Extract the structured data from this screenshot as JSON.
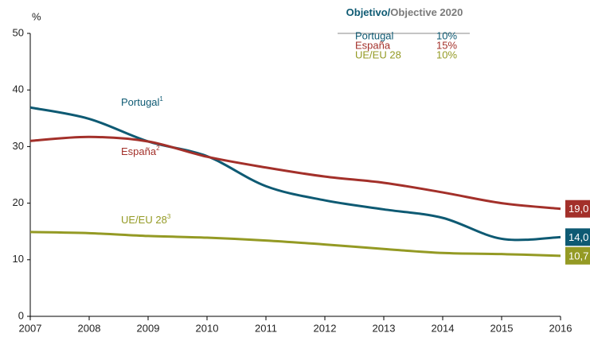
{
  "chart_data": {
    "type": "line",
    "y_label": "%",
    "x": [
      2007,
      2008,
      2009,
      2010,
      2011,
      2012,
      2013,
      2014,
      2015,
      2016
    ],
    "xlim": [
      2007,
      2016
    ],
    "xticks": [
      2007,
      2008,
      2009,
      2010,
      2011,
      2012,
      2013,
      2014,
      2015,
      2016
    ],
    "ylim": [
      0,
      50
    ],
    "yticks": [
      0,
      10,
      20,
      30,
      40,
      50
    ],
    "grid": false,
    "series": [
      {
        "name": "Portugal",
        "sup": "1",
        "color": "#0e5a73",
        "values": [
          36.9,
          34.9,
          30.9,
          28.3,
          23.0,
          20.5,
          18.9,
          17.4,
          13.7,
          14.0
        ],
        "end_label": "14,0"
      },
      {
        "name": "España",
        "sup": "2",
        "color": "#a3302a",
        "values": [
          31.0,
          31.7,
          30.9,
          28.2,
          26.3,
          24.7,
          23.6,
          21.9,
          20.0,
          19.0
        ],
        "end_label": "19,0"
      },
      {
        "name": "UE/EU 28",
        "sup": "3",
        "color": "#949a24",
        "values": [
          14.9,
          14.7,
          14.2,
          13.9,
          13.4,
          12.7,
          11.9,
          11.2,
          11.0,
          10.7
        ],
        "end_label": "10,7"
      }
    ],
    "objective": {
      "title_a": "Objetivo",
      "sep": "/",
      "title_b": "Objective 2020",
      "rows": [
        {
          "name": "Portugal",
          "target": "10%"
        },
        {
          "name": "España",
          "target": "15%"
        },
        {
          "name": "UE/EU 28",
          "target": "10%"
        }
      ]
    }
  }
}
